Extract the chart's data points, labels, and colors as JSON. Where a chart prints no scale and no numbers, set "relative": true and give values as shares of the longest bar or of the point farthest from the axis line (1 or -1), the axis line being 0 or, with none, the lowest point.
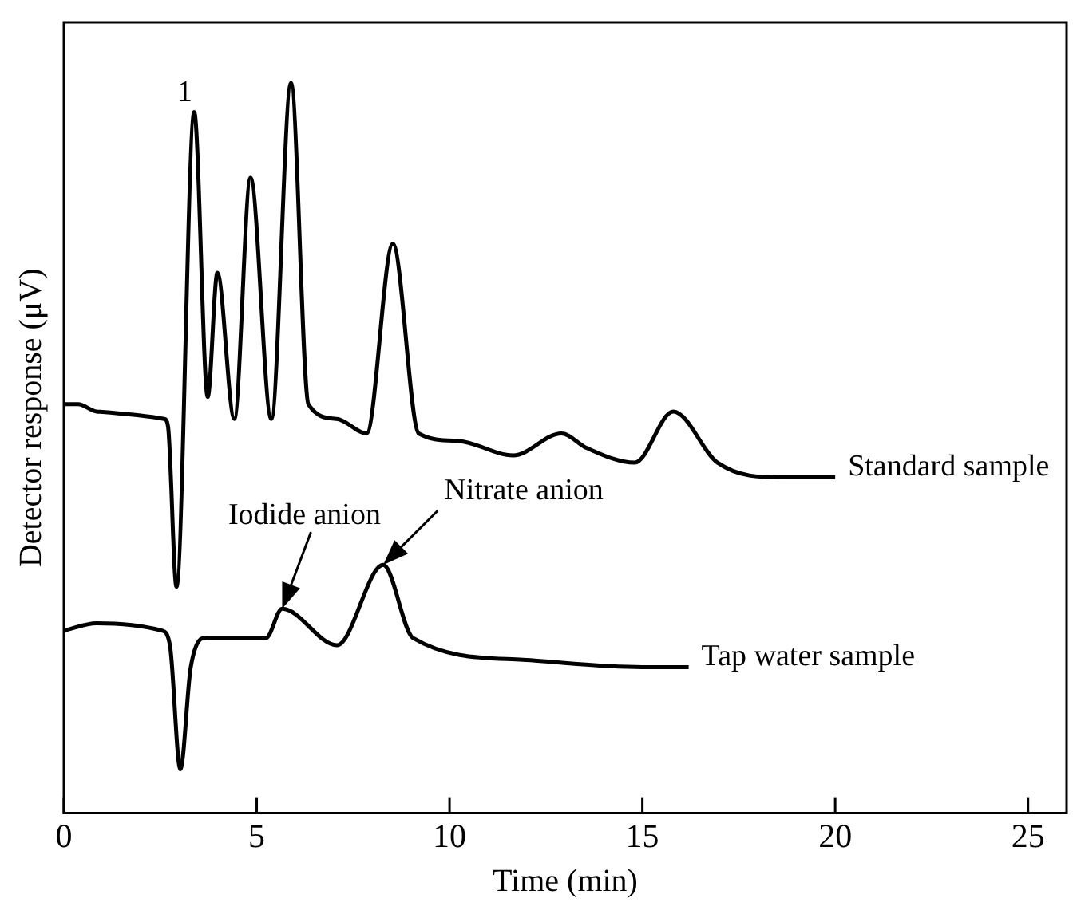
{
  "chart_data": {
    "type": "line",
    "relative": true,
    "xlabel": "Time (min)",
    "ylabel": "Detector response (μV)",
    "xlim": [
      0,
      26
    ],
    "xticks": [
      0,
      5,
      10,
      15,
      20,
      25
    ],
    "grid": false,
    "legend": false,
    "marker": "none",
    "line_style": "solid",
    "series": [
      {
        "name": "Standard sample",
        "color": "#000000",
        "x": [
          0,
          0.37,
          0.85,
          2.6,
          2.7,
          2.92,
          3.38,
          3.73,
          3.98,
          4.42,
          4.84,
          5.38,
          5.89,
          6.34,
          7.08,
          7.85,
          8.53,
          9.2,
          10.2,
          11.65,
          12.9,
          13.56,
          14.8,
          15.8,
          16.95,
          18.6,
          20
        ],
        "values": [
          0.56,
          0.56,
          0.55,
          0.54,
          0.53,
          0.31,
          0.96,
          0.57,
          0.74,
          0.54,
          0.87,
          0.54,
          1,
          0.56,
          0.54,
          0.52,
          0.78,
          0.52,
          0.51,
          0.49,
          0.52,
          0.5,
          0.48,
          0.55,
          0.48,
          0.46,
          0.46
        ]
      },
      {
        "name": "Tap water sample",
        "color": "#000000",
        "x": [
          0,
          0.85,
          2.54,
          2.75,
          3.02,
          3.29,
          3.69,
          5.24,
          5.66,
          7.08,
          8.28,
          9.05,
          11.9,
          15,
          16.2
        ],
        "values": [
          0.25,
          0.26,
          0.25,
          0.23,
          0.06,
          0.2,
          0.24,
          0.24,
          0.28,
          0.23,
          0.34,
          0.24,
          0.21,
          0.2,
          0.2
        ]
      }
    ],
    "annotations": [
      {
        "text": "1",
        "x": 3.38,
        "y": 0.96
      },
      {
        "text": "Iodide anion",
        "x": 5.66,
        "y": 0.28
      },
      {
        "text": "Nitrate anion",
        "x": 8.28,
        "y": 0.34
      }
    ]
  }
}
